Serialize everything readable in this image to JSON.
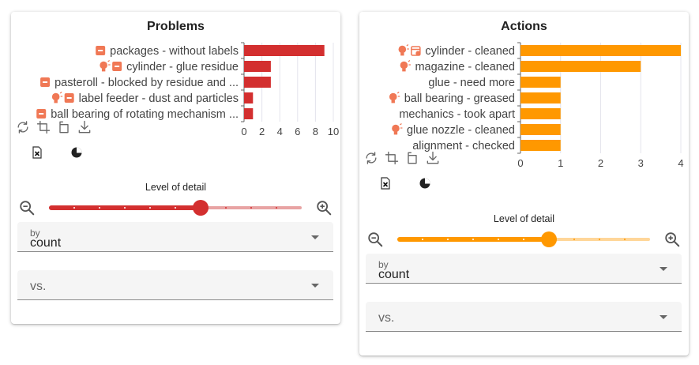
{
  "colors": {
    "problems_accent": "#d32f2f",
    "problems_track": "#e8a3a3",
    "actions_accent": "#ff9800",
    "actions_track": "#ffd699",
    "problem_icon": "#f07855",
    "action_icon": "#f07855"
  },
  "problems": {
    "title": "Problems",
    "level_of_detail_label": "Level of detail",
    "slider": {
      "value_fraction": 0.6,
      "steps": 10
    },
    "by": {
      "label": "by",
      "value": "count"
    },
    "vs": {
      "placeholder": "vs."
    },
    "tools": [
      "refresh-icon",
      "crop-icon",
      "rotate-icon",
      "download-icon"
    ],
    "export": [
      "excel-icon",
      "pie-chart-icon"
    ]
  },
  "actions": {
    "title": "Actions",
    "level_of_detail_label": "Level of detail",
    "slider": {
      "value_fraction": 0.6,
      "steps": 10
    },
    "by": {
      "label": "by",
      "value": "count"
    },
    "vs": {
      "placeholder": "vs."
    },
    "tools": [
      "refresh-icon",
      "crop-icon",
      "rotate-icon",
      "download-icon"
    ],
    "export": [
      "excel-icon",
      "pie-chart-icon"
    ]
  },
  "chart_data": [
    {
      "type": "bar",
      "orientation": "horizontal",
      "title": "Problems",
      "categories": [
        "packages - without labels",
        "cylinder - glue residue",
        "pasteroll - blocked by residue and ...",
        "label feeder - dust and particles",
        "ball bearing of rotating mechanism ..."
      ],
      "category_icons": [
        [
          "warning-box-icon"
        ],
        [
          "bulb-icon",
          "warning-box-icon"
        ],
        [
          "warning-box-icon"
        ],
        [
          "bulb-icon",
          "warning-box-icon"
        ],
        [
          "warning-box-icon"
        ]
      ],
      "values": [
        9,
        3,
        3,
        1,
        1
      ],
      "xlim": [
        0,
        10
      ],
      "xticks": [
        0,
        2,
        4,
        6,
        8,
        10
      ],
      "grid": true
    },
    {
      "type": "bar",
      "orientation": "horizontal",
      "title": "Actions",
      "categories": [
        "cylinder - cleaned",
        "magazine - cleaned",
        "glue - need more",
        "ball bearing - greased",
        "mechanics - took apart",
        "glue nozzle - cleaned",
        "alignment - checked"
      ],
      "category_icons": [
        [
          "bulb-icon",
          "calendar-icon"
        ],
        [
          "bulb-icon"
        ],
        [],
        [
          "bulb-icon"
        ],
        [],
        [
          "bulb-icon"
        ],
        []
      ],
      "values": [
        4,
        3,
        1,
        1,
        1,
        1,
        1
      ],
      "xlim": [
        0,
        4
      ],
      "xticks": [
        0,
        1,
        2,
        3,
        4
      ],
      "grid": true
    }
  ]
}
